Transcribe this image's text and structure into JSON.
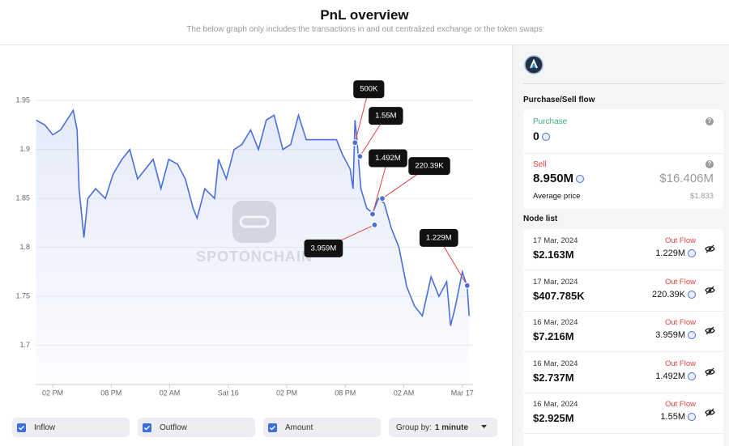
{
  "header": {
    "title": "PnL overview",
    "subtitle": "The below graph only includes the transactions in and out centralized exchange or the token swaps"
  },
  "chart_data": {
    "type": "line",
    "x": [
      12.3,
      13.2,
      14.0,
      14.8,
      16.1,
      16.5,
      16.7,
      17.2,
      17.6,
      18.4,
      19.4,
      20.2,
      21.1,
      21.9,
      22.7,
      23.5,
      24.3,
      25.1,
      25.9,
      26.8,
      27.6,
      28.4,
      28.8,
      29.6,
      30.6,
      31.0,
      31.8,
      32.6,
      33.4,
      34.3,
      35.1,
      35.9,
      36.7,
      37.6,
      38.4,
      39.2,
      40.0,
      40.8,
      41.6,
      42.4,
      43.1,
      43.7,
      44.5,
      44.8,
      45.0,
      45.2,
      45.6,
      46.2,
      46.8,
      47.4,
      48.0,
      48.7,
      49.5,
      50.3,
      51.1,
      51.9,
      52.8,
      53.6,
      54.4,
      54.8,
      55.3,
      56.0,
      56.5,
      56.7
    ],
    "values": [
      1.93,
      1.925,
      1.915,
      1.92,
      1.94,
      1.92,
      1.86,
      1.81,
      1.85,
      1.86,
      1.85,
      1.875,
      1.89,
      1.9,
      1.87,
      1.88,
      1.89,
      1.86,
      1.89,
      1.885,
      1.87,
      1.84,
      1.83,
      1.86,
      1.85,
      1.89,
      1.87,
      1.9,
      1.905,
      1.92,
      1.9,
      1.93,
      1.935,
      1.9,
      1.905,
      1.935,
      1.91,
      1.91,
      1.91,
      1.91,
      1.91,
      1.895,
      1.88,
      1.86,
      1.93,
      1.91,
      1.86,
      1.84,
      1.835,
      1.85,
      1.845,
      1.82,
      1.8,
      1.76,
      1.74,
      1.73,
      1.77,
      1.75,
      1.765,
      1.72,
      1.74,
      1.775,
      1.76,
      1.73
    ],
    "color": "#4a6fdc",
    "xlim": [
      12.25,
      57.1
    ],
    "ylim": [
      1.66,
      1.97
    ],
    "yticks": [
      1.7,
      1.75,
      1.8,
      1.85,
      1.9,
      1.95
    ],
    "xticks": [
      {
        "value": 14,
        "label": "02 PM"
      },
      {
        "value": 20,
        "label": "08 PM"
      },
      {
        "value": 26,
        "label": "02 AM"
      },
      {
        "value": 32,
        "label": "Sat 16"
      },
      {
        "value": 38,
        "label": "02 PM"
      },
      {
        "value": 44,
        "label": "08 PM"
      },
      {
        "value": 50,
        "label": "02 AM"
      },
      {
        "value": 56,
        "label": "Mar 17"
      }
    ],
    "grid": true,
    "annotations": [
      {
        "label": "500K",
        "x": 45.0,
        "y": 1.907
      },
      {
        "label": "1.55M",
        "x": 45.5,
        "y": 1.893
      },
      {
        "label": "1.492M",
        "x": 46.8,
        "y": 1.834
      },
      {
        "label": "220.39K",
        "x": 47.8,
        "y": 1.85
      },
      {
        "label": "3.959M",
        "x": 47.0,
        "y": 1.823
      },
      {
        "label": "1.229M",
        "x": 56.5,
        "y": 1.761
      }
    ],
    "watermark": "SPOTONCHAIN"
  },
  "controls": {
    "toggles": [
      "Inflow",
      "Outflow",
      "Amount"
    ],
    "group_by_label": "Group by:",
    "group_by_value": "1 minute"
  },
  "panel": {
    "flow_title": "Purchase/Sell flow",
    "purchase_label": "Purchase",
    "purchase_value": "0",
    "sell_label": "Sell",
    "sell_value": "8.950M",
    "sell_usd": "$16.406M",
    "avg_price_label": "Average price",
    "avg_price": "$1.833",
    "node_list_title": "Node list",
    "nodes": [
      {
        "date": "17 Mar, 2024",
        "usd": "$2.163M",
        "flow": "Out Flow",
        "amount": "1.229M"
      },
      {
        "date": "17 Mar, 2024",
        "usd": "$407.785K",
        "flow": "Out Flow",
        "amount": "220.39K"
      },
      {
        "date": "16 Mar, 2024",
        "usd": "$7.216M",
        "flow": "Out Flow",
        "amount": "3.959M"
      },
      {
        "date": "16 Mar, 2024",
        "usd": "$2.737M",
        "flow": "Out Flow",
        "amount": "1.492M"
      },
      {
        "date": "16 Mar, 2024",
        "usd": "$2.925M",
        "flow": "Out Flow",
        "amount": "1.55M"
      }
    ]
  }
}
